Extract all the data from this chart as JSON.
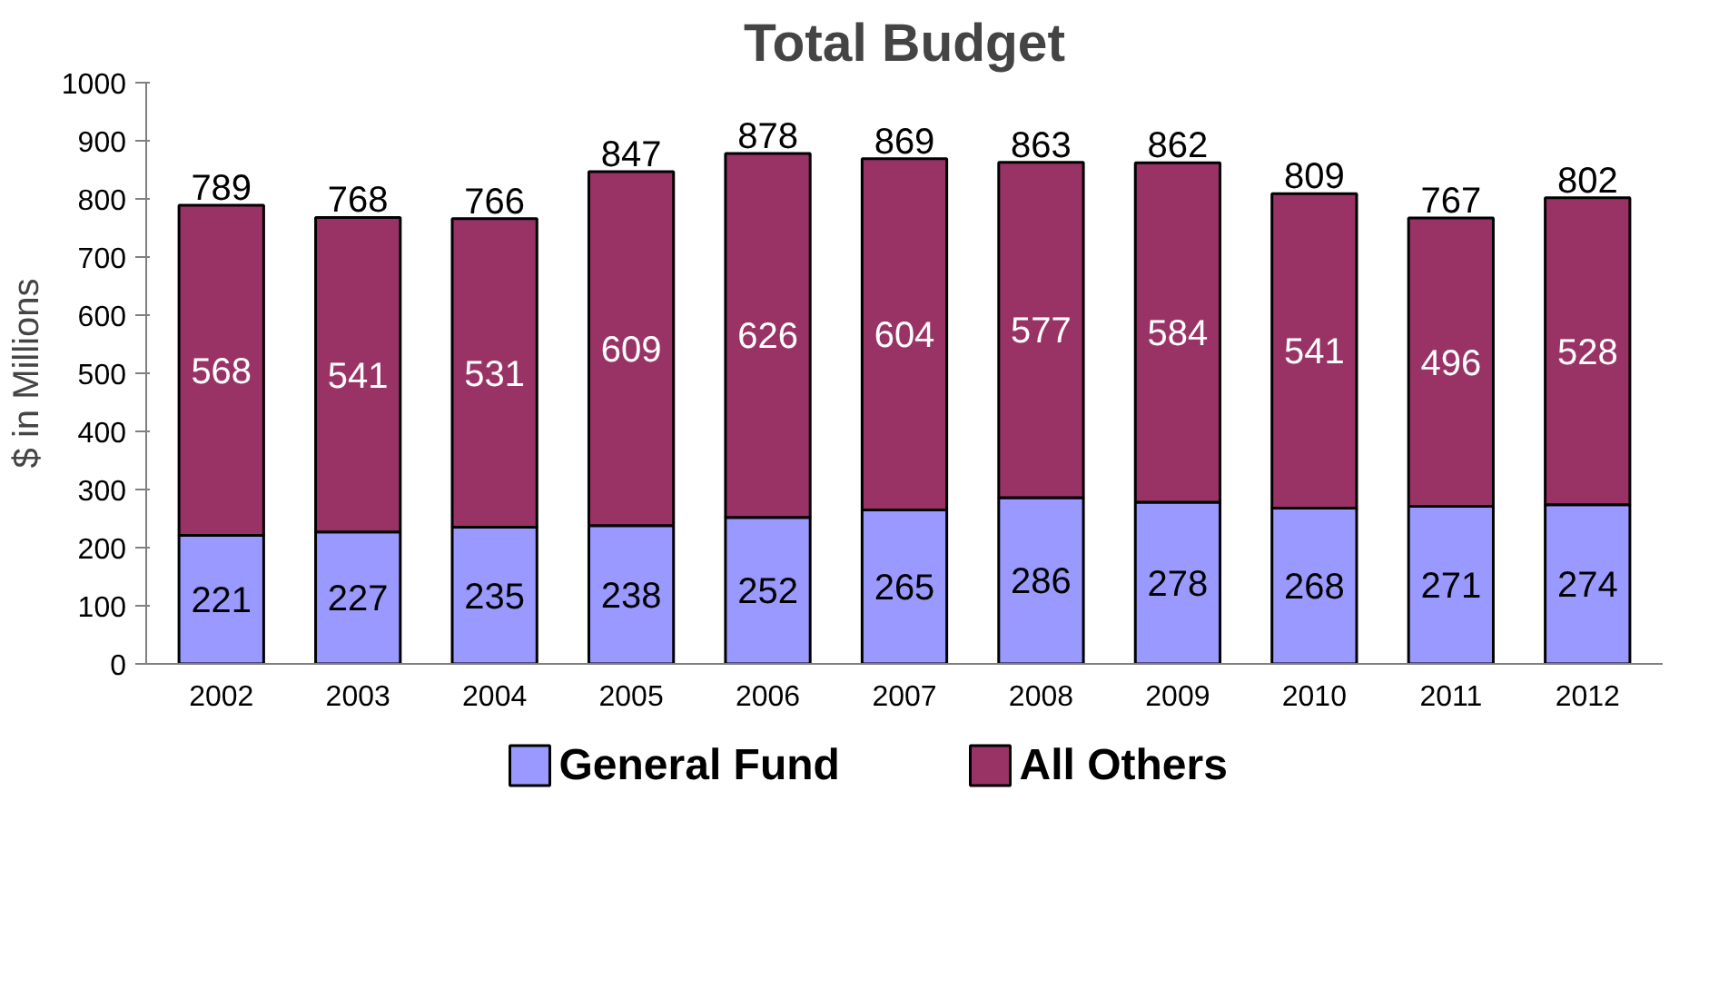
{
  "chart_data": {
    "type": "bar",
    "title": "Total Budget",
    "ylabel": "$ in Millions",
    "categories": [
      "2002",
      "2003",
      "2004",
      "2005",
      "2006",
      "2007",
      "2008",
      "2009",
      "2010",
      "2011",
      "2012"
    ],
    "series": [
      {
        "name": "General Fund",
        "color": "#9999ff",
        "values": [
          221,
          227,
          235,
          238,
          252,
          265,
          286,
          278,
          268,
          271,
          274
        ]
      },
      {
        "name": "All Others",
        "color": "#993366",
        "values": [
          568,
          541,
          531,
          609,
          626,
          604,
          577,
          584,
          541,
          496,
          528
        ]
      }
    ],
    "stacked": true,
    "data_labels": true,
    "totals": [
      "789",
      "768",
      "766",
      "847",
      "878",
      "869",
      "863",
      "862",
      "809",
      "767",
      "802"
    ],
    "ylim": [
      0,
      1000
    ],
    "yticks": [
      0,
      100,
      200,
      300,
      400,
      500,
      600,
      700,
      800,
      900,
      1000
    ],
    "legend": "bottom"
  }
}
